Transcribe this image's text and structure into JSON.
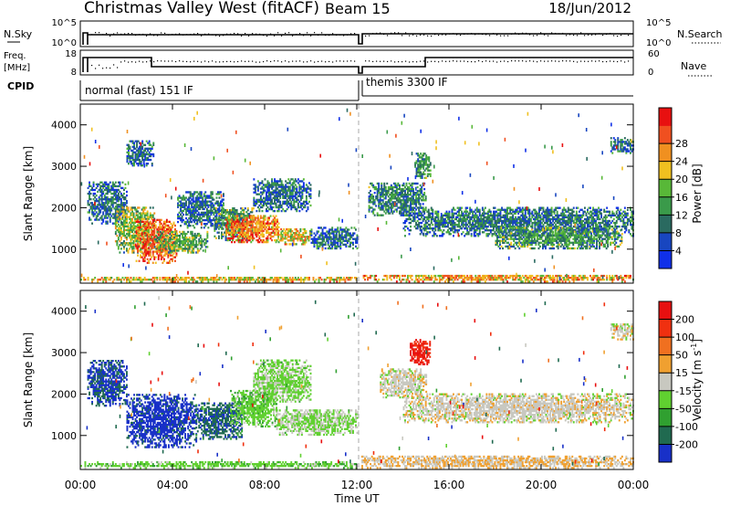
{
  "header": {
    "title": "Christmas Valley West (fitACF)",
    "beam": "Beam 15",
    "date": "18/Jun/2012"
  },
  "top_panels": {
    "nsky_label": "N.Sky",
    "nsky_ticks": [
      "10^5",
      "10^0"
    ],
    "nsearch_label": "N.Search",
    "nsearch_ticks": [
      "10^5",
      "10^0"
    ],
    "freq_label_1": "Freq.",
    "freq_label_2": "[MHz]",
    "freq_ticks": [
      "18",
      "8"
    ],
    "nave_label": "Nave",
    "nave_ticks": [
      "60",
      "0"
    ],
    "cpid_label": "CPID",
    "cpid_modes": [
      {
        "name": "normal (fast) 151 IF",
        "start": 0,
        "end": 12
      },
      {
        "name": "themis 3300 IF",
        "start": 12.2,
        "end": 24
      }
    ]
  },
  "time_axis": {
    "label": "Time UT",
    "ticks": [
      "00:00",
      "04:00",
      "08:00",
      "12:00",
      "16:00",
      "20:00",
      "00:00"
    ],
    "values": [
      0,
      4,
      8,
      12,
      16,
      20,
      24
    ]
  },
  "range_axis": {
    "label": "Slant Range [km]",
    "ticks": [
      "1000",
      "2000",
      "3000",
      "4000"
    ],
    "values": [
      1000,
      2000,
      3000,
      4000
    ],
    "ylim": [
      180,
      4500
    ]
  },
  "power_scale": {
    "label": "Power [dB]",
    "ticks": [
      "4",
      "8",
      "12",
      "16",
      "20",
      "24",
      "28"
    ],
    "colors": [
      "#1030e8",
      "#1846c0",
      "#2a6a60",
      "#3a9a4a",
      "#58b838",
      "#f0c020",
      "#f09020",
      "#f05020",
      "#e81010"
    ]
  },
  "velocity_scale": {
    "label": "Velocity [m s",
    "label_sup": "-1",
    "label_end": "]",
    "ticks": [
      "200",
      "100",
      "50",
      "15",
      "-15",
      "-50",
      "-100",
      "-200"
    ],
    "colors": [
      "#1830c8",
      "#206a50",
      "#30a030",
      "#60d030",
      "#c8c8c0",
      "#f0a030",
      "#f07020",
      "#f03010",
      "#e81010"
    ]
  },
  "chart_data": [
    {
      "type": "heatmap",
      "name": "Power",
      "xlim": [
        0,
        24
      ],
      "ylim": [
        180,
        4500
      ],
      "clim": [
        0,
        32
      ],
      "regions": [
        {
          "t": [
            0.3,
            2.0
          ],
          "r": [
            1600,
            2600
          ],
          "v": 8
        },
        {
          "t": [
            1.5,
            3.2
          ],
          "r": [
            900,
            2000
          ],
          "v": 16
        },
        {
          "t": [
            2.4,
            4.2
          ],
          "r": [
            650,
            1700
          ],
          "v": 26
        },
        {
          "t": [
            3.2,
            5.5
          ],
          "r": [
            900,
            1400
          ],
          "v": 14
        },
        {
          "t": [
            4.2,
            6.2
          ],
          "r": [
            1500,
            2400
          ],
          "v": 8
        },
        {
          "t": [
            5.8,
            7.5
          ],
          "r": [
            1200,
            2000
          ],
          "v": 12
        },
        {
          "t": [
            6.3,
            8.6
          ],
          "r": [
            1150,
            1800
          ],
          "v": 24
        },
        {
          "t": [
            7.5,
            10.0
          ],
          "r": [
            1900,
            2700
          ],
          "v": 8
        },
        {
          "t": [
            8.5,
            10.0
          ],
          "r": [
            1100,
            1500
          ],
          "v": 20
        },
        {
          "t": [
            10.0,
            12.0
          ],
          "r": [
            1000,
            1500
          ],
          "v": 8
        },
        {
          "t": [
            0.0,
            12.0
          ],
          "r": [
            200,
            320
          ],
          "v": 20
        },
        {
          "t": [
            2.0,
            3.2
          ],
          "r": [
            3000,
            3600
          ],
          "v": 8
        },
        {
          "t": [
            12.5,
            15.0
          ],
          "r": [
            1800,
            2600
          ],
          "v": 10
        },
        {
          "t": [
            14.0,
            24.0
          ],
          "r": [
            1300,
            2000
          ],
          "v": 9
        },
        {
          "t": [
            18.0,
            23.5
          ],
          "r": [
            1000,
            1500
          ],
          "v": 12
        },
        {
          "t": [
            14.5,
            15.2
          ],
          "r": [
            2700,
            3300
          ],
          "v": 12
        },
        {
          "t": [
            23.0,
            24.0
          ],
          "r": [
            3300,
            3700
          ],
          "v": 8
        },
        {
          "t": [
            12.2,
            24.0
          ],
          "r": [
            200,
            380
          ],
          "v": 22
        }
      ]
    },
    {
      "type": "heatmap",
      "name": "Velocity",
      "xlim": [
        0,
        24
      ],
      "ylim": [
        180,
        4500
      ],
      "clim": [
        -250,
        250
      ],
      "regions": [
        {
          "t": [
            0.3,
            2.0
          ],
          "r": [
            1700,
            2800
          ],
          "v": -200
        },
        {
          "t": [
            2.0,
            5.0
          ],
          "r": [
            700,
            2000
          ],
          "v": -220
        },
        {
          "t": [
            5.0,
            7.0
          ],
          "r": [
            900,
            1800
          ],
          "v": -180
        },
        {
          "t": [
            6.5,
            8.5
          ],
          "r": [
            1200,
            2100
          ],
          "v": -60
        },
        {
          "t": [
            7.5,
            10.0
          ],
          "r": [
            1800,
            2800
          ],
          "v": -40
        },
        {
          "t": [
            8.5,
            12.0
          ],
          "r": [
            1000,
            1600
          ],
          "v": -30
        },
        {
          "t": [
            0.0,
            12.0
          ],
          "r": [
            200,
            340
          ],
          "v": -60
        },
        {
          "t": [
            13.0,
            15.0
          ],
          "r": [
            1900,
            2600
          ],
          "v": 0
        },
        {
          "t": [
            14.0,
            24.0
          ],
          "r": [
            1300,
            2000
          ],
          "v": 5
        },
        {
          "t": [
            14.3,
            15.2
          ],
          "r": [
            2700,
            3300
          ],
          "v": 200
        },
        {
          "t": [
            23.0,
            24.0
          ],
          "r": [
            3300,
            3700
          ],
          "v": 0
        },
        {
          "t": [
            12.2,
            24.0
          ],
          "r": [
            200,
            500
          ],
          "v": 30
        }
      ]
    }
  ]
}
